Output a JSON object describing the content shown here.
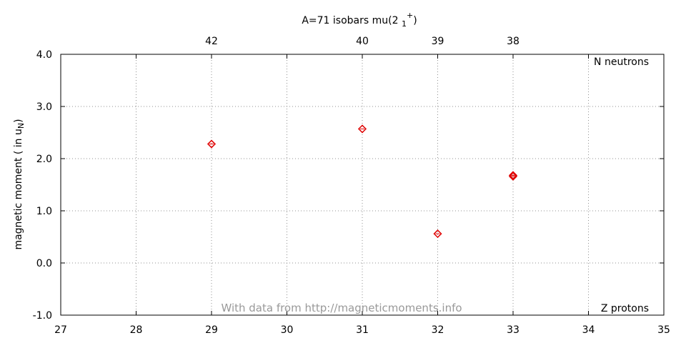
{
  "chart_data": {
    "type": "scatter",
    "title": "A=71 isobars mu(2 1+)",
    "title_parts": {
      "main": "A=71 isobars mu(2 ",
      "sub": "1",
      "sup": "+",
      "close": ")"
    },
    "ylabel": "magnetic moment ( in u",
    "ylabel_sub": "N",
    "ylabel_close": ")",
    "xlabel": "Z protons",
    "x2label": "N neutrons",
    "xlim": [
      27,
      35
    ],
    "ylim": [
      -1.0,
      4.0
    ],
    "x_ticks": [
      "27",
      "28",
      "29",
      "30",
      "31",
      "32",
      "33",
      "34",
      "35"
    ],
    "y_ticks": [
      "-1.0",
      "0.0",
      "1.0",
      "2.0",
      "3.0",
      "4.0"
    ],
    "top_ticks": [
      {
        "z": 29,
        "label": "42"
      },
      {
        "z": 31,
        "label": "40"
      },
      {
        "z": 32,
        "label": "39"
      },
      {
        "z": 33,
        "label": "38"
      }
    ],
    "grid": true,
    "marker_color": "#e00000",
    "watermark": "With data from http://magneticmoments.info",
    "watermark_color": "#999999",
    "series": [
      {
        "x": [
          29,
          31,
          32,
          33,
          33
        ],
        "y": [
          2.28,
          2.57,
          0.56,
          1.66,
          1.68
        ]
      }
    ]
  }
}
